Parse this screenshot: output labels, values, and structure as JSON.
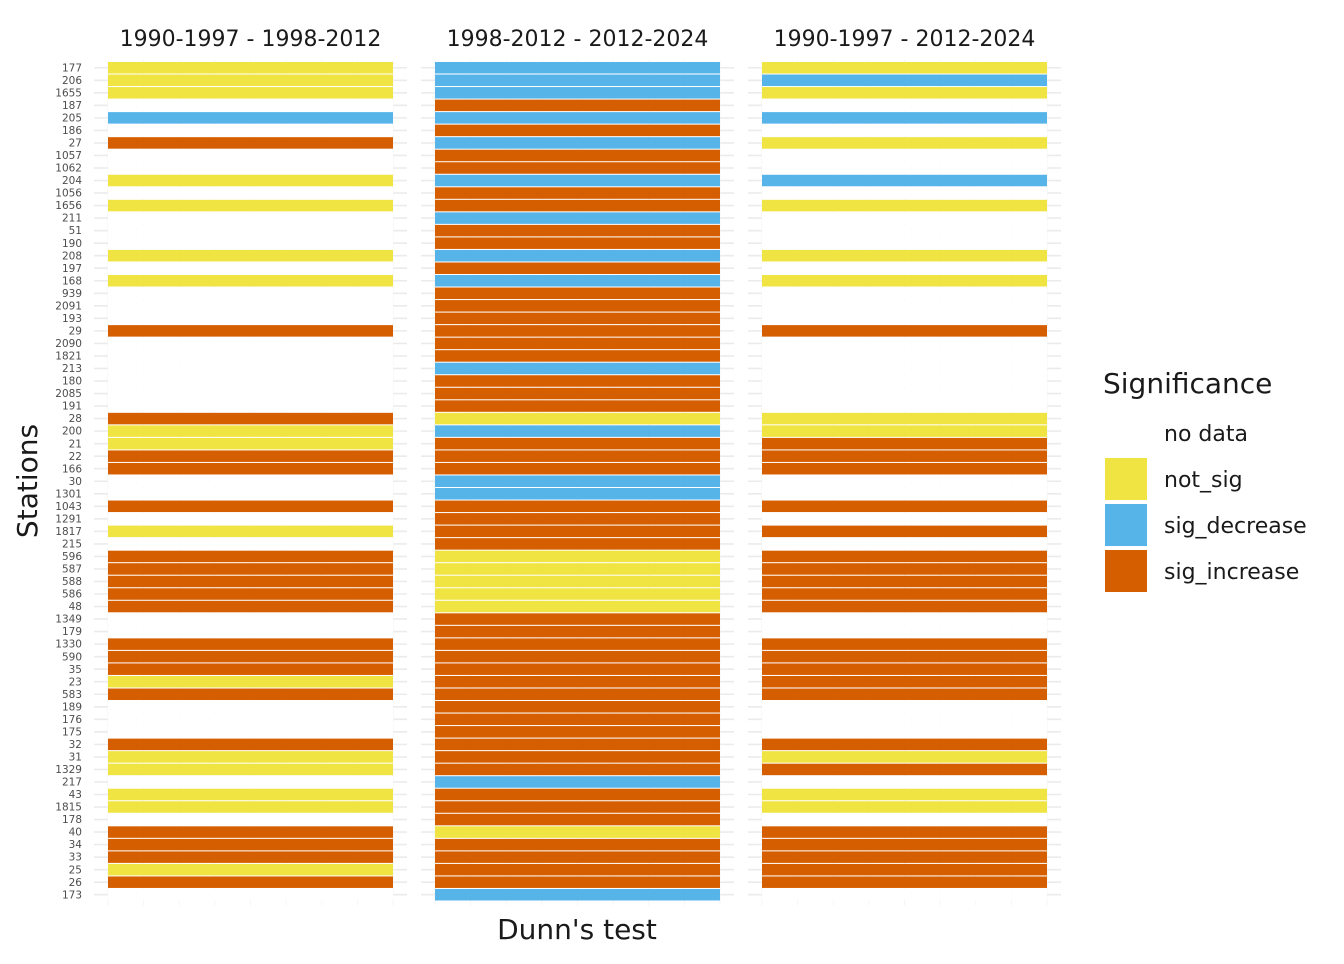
{
  "chart_data": {
    "type": "heatmap",
    "xlabel": "Dunn's test",
    "ylabel": "Stations",
    "stations": [
      "177",
      "206",
      "1655",
      "187",
      "205",
      "186",
      "27",
      "1057",
      "1062",
      "204",
      "1056",
      "1656",
      "211",
      "51",
      "190",
      "208",
      "197",
      "168",
      "939",
      "2091",
      "193",
      "29",
      "2090",
      "1821",
      "213",
      "180",
      "2085",
      "191",
      "28",
      "200",
      "21",
      "22",
      "166",
      "30",
      "1301",
      "1043",
      "1291",
      "1817",
      "215",
      "596",
      "587",
      "588",
      "586",
      "48",
      "1349",
      "179",
      "1330",
      "590",
      "35",
      "23",
      "583",
      "189",
      "176",
      "175",
      "32",
      "31",
      "1329",
      "217",
      "43",
      "1815",
      "178",
      "40",
      "34",
      "33",
      "25",
      "26",
      "173"
    ],
    "panels": [
      {
        "name": "1990-1997 - 1998-2012",
        "values": [
          "not_sig",
          "not_sig",
          "not_sig",
          "no data",
          "sig_decrease",
          "no data",
          "sig_increase",
          "no data",
          "no data",
          "not_sig",
          "no data",
          "not_sig",
          "no data",
          "no data",
          "no data",
          "not_sig",
          "no data",
          "not_sig",
          "no data",
          "no data",
          "no data",
          "sig_increase",
          "no data",
          "no data",
          "no data",
          "no data",
          "no data",
          "no data",
          "sig_increase",
          "not_sig",
          "not_sig",
          "sig_increase",
          "sig_increase",
          "no data",
          "no data",
          "sig_increase",
          "no data",
          "not_sig",
          "no data",
          "sig_increase",
          "sig_increase",
          "sig_increase",
          "sig_increase",
          "sig_increase",
          "no data",
          "no data",
          "sig_increase",
          "sig_increase",
          "sig_increase",
          "not_sig",
          "sig_increase",
          "no data",
          "no data",
          "no data",
          "sig_increase",
          "not_sig",
          "not_sig",
          "no data",
          "not_sig",
          "not_sig",
          "no data",
          "sig_increase",
          "sig_increase",
          "sig_increase",
          "not_sig",
          "sig_increase",
          "no data"
        ]
      },
      {
        "name": "1998-2012 - 2012-2024",
        "values": [
          "sig_decrease",
          "sig_decrease",
          "sig_decrease",
          "sig_increase",
          "sig_decrease",
          "sig_increase",
          "sig_decrease",
          "sig_increase",
          "sig_increase",
          "sig_decrease",
          "sig_increase",
          "sig_increase",
          "sig_decrease",
          "sig_increase",
          "sig_increase",
          "sig_decrease",
          "sig_increase",
          "sig_decrease",
          "sig_increase",
          "sig_increase",
          "sig_increase",
          "sig_increase",
          "sig_increase",
          "sig_increase",
          "sig_decrease",
          "sig_increase",
          "sig_increase",
          "sig_increase",
          "not_sig",
          "sig_decrease",
          "sig_increase",
          "sig_increase",
          "sig_increase",
          "sig_decrease",
          "sig_decrease",
          "sig_increase",
          "sig_increase",
          "sig_increase",
          "sig_increase",
          "not_sig",
          "not_sig",
          "not_sig",
          "not_sig",
          "not_sig",
          "sig_increase",
          "sig_increase",
          "sig_increase",
          "sig_increase",
          "sig_increase",
          "sig_increase",
          "sig_increase",
          "sig_increase",
          "sig_increase",
          "sig_increase",
          "sig_increase",
          "sig_increase",
          "sig_increase",
          "sig_decrease",
          "sig_increase",
          "sig_increase",
          "sig_increase",
          "not_sig",
          "sig_increase",
          "sig_increase",
          "sig_increase",
          "sig_increase",
          "sig_decrease"
        ]
      },
      {
        "name": "1990-1997 - 2012-2024",
        "values": [
          "not_sig",
          "sig_decrease",
          "not_sig",
          "no data",
          "sig_decrease",
          "no data",
          "not_sig",
          "no data",
          "no data",
          "sig_decrease",
          "no data",
          "not_sig",
          "no data",
          "no data",
          "no data",
          "not_sig",
          "no data",
          "not_sig",
          "no data",
          "no data",
          "no data",
          "sig_increase",
          "no data",
          "no data",
          "no data",
          "no data",
          "no data",
          "no data",
          "not_sig",
          "not_sig",
          "sig_increase",
          "sig_increase",
          "sig_increase",
          "no data",
          "no data",
          "sig_increase",
          "no data",
          "sig_increase",
          "no data",
          "sig_increase",
          "sig_increase",
          "sig_increase",
          "sig_increase",
          "sig_increase",
          "no data",
          "no data",
          "sig_increase",
          "sig_increase",
          "sig_increase",
          "sig_increase",
          "sig_increase",
          "no data",
          "no data",
          "no data",
          "sig_increase",
          "not_sig",
          "sig_increase",
          "no data",
          "not_sig",
          "not_sig",
          "no data",
          "sig_increase",
          "sig_increase",
          "sig_increase",
          "sig_increase",
          "sig_increase",
          "no data"
        ]
      }
    ],
    "legend": {
      "title": "Significance",
      "placement": "right",
      "entries": [
        {
          "label": "no data",
          "color": "#ffffff"
        },
        {
          "label": "not_sig",
          "color": "#F0E442"
        },
        {
          "label": "sig_decrease",
          "color": "#56B4E9"
        },
        {
          "label": "sig_increase",
          "color": "#D55E00"
        }
      ]
    },
    "grid": true
  }
}
